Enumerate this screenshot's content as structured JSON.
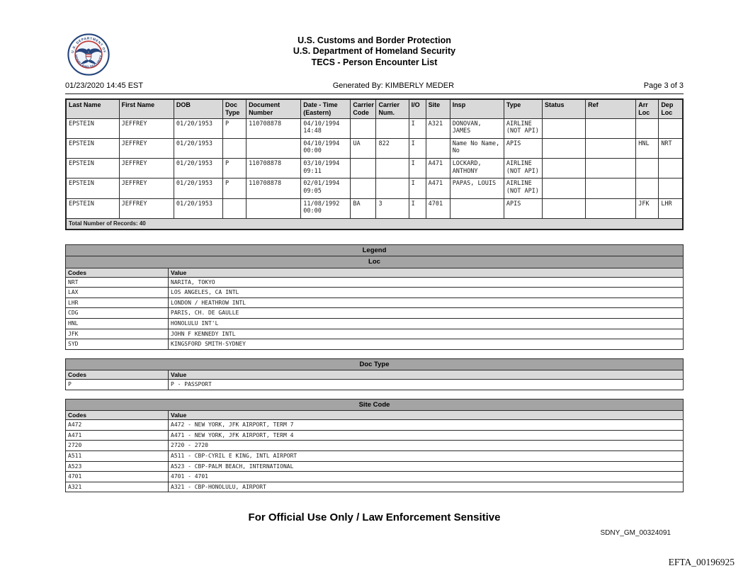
{
  "header": {
    "title_line1": "U.S. Customs and Border Protection",
    "title_line2": "U.S. Department of Homeland Security",
    "title_line3": "TECS - Person Encounter List",
    "datetime": "01/23/2020 14:45 EST",
    "generated_by": "Generated By: KIMBERLY MEDER",
    "page_info": "Page 3 of 3",
    "seal_text_top": "U.S. DEPARTMENT OF",
    "seal_text_bottom": "HOMELAND SECURITY"
  },
  "encounter_table": {
    "columns": [
      "Last Name",
      "First Name",
      "DOB",
      "Doc Type",
      "Document Number",
      "Date - Time (Eastern)",
      "Carrier Code",
      "Carrier Num.",
      "I/O",
      "Site",
      "Insp",
      "Type",
      "Status",
      "Ref",
      "Arr Loc",
      "Dep Loc"
    ],
    "rows": [
      [
        "EPSTEIN",
        "JEFFREY",
        "01/20/1953",
        "P",
        "110708878",
        "04/10/1994 14:48",
        "",
        "",
        "I",
        "A321",
        "DONOVAN, JAMES",
        "AIRLINE (NOT API)",
        "",
        "",
        "",
        ""
      ],
      [
        "EPSTEIN",
        "JEFFREY",
        "01/20/1953",
        "",
        "",
        "04/10/1994 00:00",
        "UA",
        "822",
        "I",
        "",
        "Name No Name, No",
        "APIS",
        "",
        "",
        "HNL",
        "NRT"
      ],
      [
        "EPSTEIN",
        "JEFFREY",
        "01/20/1953",
        "P",
        "110708878",
        "03/10/1994 09:11",
        "",
        "",
        "I",
        "A471",
        "LOCKARD, ANTHONY",
        "AIRLINE (NOT API)",
        "",
        "",
        "",
        ""
      ],
      [
        "EPSTEIN",
        "JEFFREY",
        "01/20/1953",
        "P",
        "110708878",
        "02/01/1994 09:05",
        "",
        "",
        "I",
        "A471",
        "PAPAS, LOUIS",
        "AIRLINE (NOT API)",
        "",
        "",
        "",
        ""
      ],
      [
        "EPSTEIN",
        "JEFFREY",
        "01/20/1953",
        "",
        "",
        "11/08/1992 00:00",
        "BA",
        "3",
        "I",
        "4701",
        "",
        "APIS",
        "",
        "",
        "JFK",
        "LHR"
      ]
    ],
    "total_label": "Total Number of Records: 40"
  },
  "legend": {
    "title": "Legend",
    "sections": [
      {
        "title": "Loc",
        "columns": [
          "Codes",
          "Value"
        ],
        "rows": [
          [
            "NRT",
            "NARITA, TOKYO"
          ],
          [
            "LAX",
            "LOS ANGELES, CA INTL"
          ],
          [
            "LHR",
            "LONDON / HEATHROW INTL"
          ],
          [
            "CDG",
            "PARIS, CH. DE GAULLE"
          ],
          [
            "HNL",
            "HONOLULU INT'L"
          ],
          [
            "JFK",
            "JOHN F KENNEDY INTL"
          ],
          [
            "SYD",
            "KINGSFORD SMITH-SYDNEY"
          ]
        ]
      },
      {
        "title": "Doc Type",
        "columns": [
          "Codes",
          "Value"
        ],
        "rows": [
          [
            "P",
            "P - PASSPORT"
          ]
        ]
      },
      {
        "title": "Site Code",
        "columns": [
          "Codes",
          "Value"
        ],
        "rows": [
          [
            "A472",
            "A472 - NEW YORK, JFK AIRPORT, TERM 7"
          ],
          [
            "A471",
            "A471 - NEW YORK, JFK AIRPORT, TERM 4"
          ],
          [
            "2720",
            "2720 - 2720"
          ],
          [
            "A511",
            "A511 - CBP-CYRIL E KING, INTL AIRPORT"
          ],
          [
            "A523",
            "A523 - CBP-PALM BEACH, INTERNATIONAL"
          ],
          [
            "4701",
            "4701 - 4701"
          ],
          [
            "A321",
            "A321 - CBP-HONOLULU, AIRPORT"
          ]
        ]
      }
    ]
  },
  "footer": {
    "fouo": "For Official Use Only / Law Enforcement Sensitive",
    "bates_sdny": "SDNY_GM_00324091",
    "bates_efta": "EFTA_00196925"
  },
  "colors": {
    "section_bar": "#a4a4a4",
    "header_row": "#d9d9d9",
    "seal_blue": "#26457c",
    "seal_red": "#bf3b3b"
  }
}
